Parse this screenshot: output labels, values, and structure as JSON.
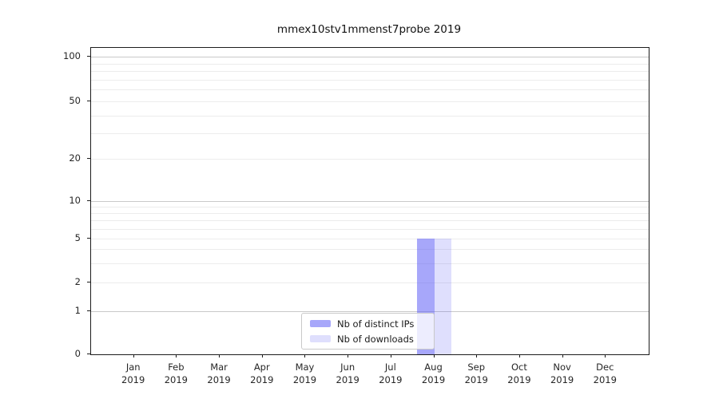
{
  "title": "mmex10stv1mmenst7probe 2019",
  "chart_data": {
    "type": "bar",
    "title": "mmex10stv1mmenst7probe 2019",
    "categories": [
      {
        "month": "Jan",
        "year": "2019"
      },
      {
        "month": "Feb",
        "year": "2019"
      },
      {
        "month": "Mar",
        "year": "2019"
      },
      {
        "month": "Apr",
        "year": "2019"
      },
      {
        "month": "May",
        "year": "2019"
      },
      {
        "month": "Jun",
        "year": "2019"
      },
      {
        "month": "Jul",
        "year": "2019"
      },
      {
        "month": "Aug",
        "year": "2019"
      },
      {
        "month": "Sep",
        "year": "2019"
      },
      {
        "month": "Oct",
        "year": "2019"
      },
      {
        "month": "Nov",
        "year": "2019"
      },
      {
        "month": "Dec",
        "year": "2019"
      }
    ],
    "series": [
      {
        "name": "Nb of distinct IPs",
        "color": "rgba(95,95,245,0.55)",
        "values": [
          0,
          0,
          0,
          0,
          0,
          0,
          0,
          5,
          0,
          0,
          0,
          0
        ]
      },
      {
        "name": "Nb of downloads",
        "color": "rgba(95,95,245,0.20)",
        "values": [
          0,
          0,
          0,
          0,
          0,
          0,
          0,
          5,
          0,
          0,
          0,
          0
        ]
      }
    ],
    "xlabel": "",
    "ylabel": "",
    "yscale": "symlog",
    "ylim": [
      0,
      100
    ],
    "yticks_labeled": [
      0,
      1,
      2,
      5,
      10,
      20,
      50,
      100
    ],
    "yticks_minor": [
      3,
      4,
      6,
      7,
      8,
      9,
      30,
      40,
      60,
      70,
      80,
      90
    ],
    "grid": "horizontal",
    "legend_position": "lower center",
    "colors": {
      "bar_distinct_ips": "#a7a7fa",
      "bar_downloads": "#dfdffd",
      "grid_major": "#c9c9c9",
      "grid_minor": "#ececec",
      "axis": "#1c1c1c"
    }
  }
}
